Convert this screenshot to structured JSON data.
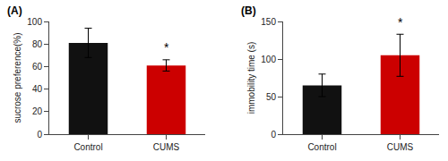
{
  "chart_data": [
    {
      "type": "bar",
      "title": "(A)",
      "categories": [
        "Control",
        "CUMS"
      ],
      "values": [
        81,
        61
      ],
      "errors": [
        13,
        5
      ],
      "colors": [
        "#111111",
        "#cc0000"
      ],
      "ylabel": "sucrose preference(%)",
      "ylim": [
        0,
        100
      ],
      "yticks": [
        0,
        20,
        40,
        60,
        80,
        100
      ],
      "annotations": [
        {
          "x": "CUMS",
          "text": "*"
        }
      ],
      "grid": false
    },
    {
      "type": "bar",
      "title": "(B)",
      "categories": [
        "Control",
        "CUMS"
      ],
      "values": [
        65,
        105
      ],
      "errors": [
        15,
        28
      ],
      "colors": [
        "#111111",
        "#cc0000"
      ],
      "ylabel": "immobility time (s)",
      "ylim": [
        0,
        150
      ],
      "yticks": [
        0,
        50,
        100,
        150
      ],
      "annotations": [
        {
          "x": "CUMS",
          "text": "*"
        }
      ],
      "grid": false
    }
  ]
}
